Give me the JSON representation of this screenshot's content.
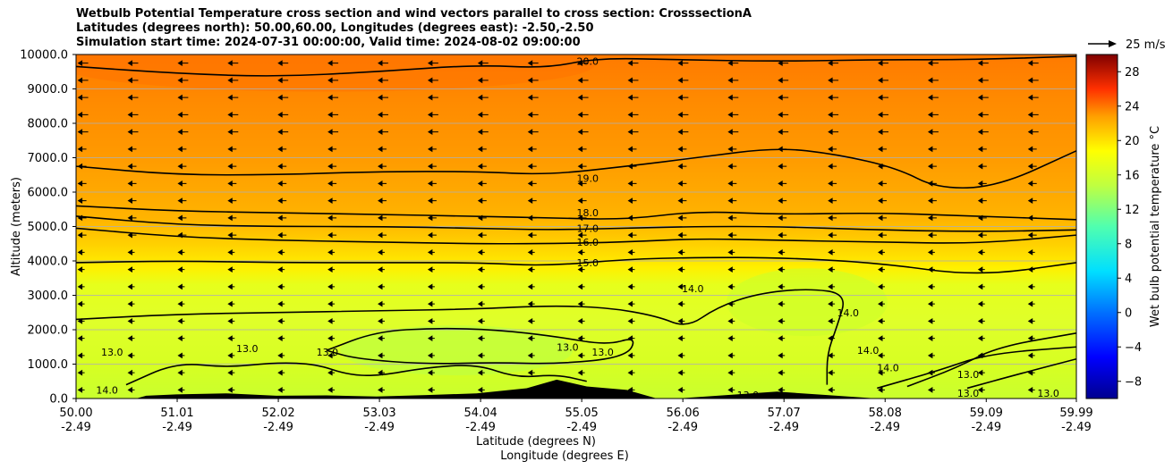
{
  "chart_data": {
    "type": "contour",
    "title": [
      "Wetbulb Potential Temperature cross section and wind vectors parallel to cross section: CrosssectionA",
      "Latitudes (degrees north): 50.00,60.00, Longitudes (degrees east): -2.50,-2.50",
      "Simulation start time: 2024-07-31 00:00:00, Valid time: 2024-08-02 09:00:00"
    ],
    "xlabel_lat": "Latitude (degrees N)",
    "xlabel_lon": "Longitude (degrees E)",
    "ylabel": "Altitude (meters)",
    "x_ticks_lat": [
      "50.00",
      "51.01",
      "52.02",
      "53.03",
      "54.04",
      "55.05",
      "56.06",
      "57.07",
      "58.08",
      "59.09",
      "59.99"
    ],
    "x_ticks_lon": [
      "-2.49",
      "-2.49",
      "-2.49",
      "-2.49",
      "-2.49",
      "-2.49",
      "-2.49",
      "-2.49",
      "-2.49",
      "-2.49",
      "-2.49"
    ],
    "xlim": [
      50.0,
      59.99
    ],
    "ylim": [
      0,
      10000
    ],
    "y_ticks": [
      "0.0",
      "1000.0",
      "2000.0",
      "3000.0",
      "4000.0",
      "5000.0",
      "6000.0",
      "7000.0",
      "8000.0",
      "9000.0",
      "10000.0"
    ],
    "grid": "horizontal",
    "contour_labels": [
      "20.0",
      "19.0",
      "18.0",
      "17.0",
      "16.0",
      "15.0",
      "14.0",
      "13.0"
    ],
    "contours": [
      {
        "level": 20.0,
        "points": [
          [
            50.0,
            9650
          ],
          [
            51.0,
            9450
          ],
          [
            52.0,
            9350
          ],
          [
            53.0,
            9500
          ],
          [
            54.0,
            9700
          ],
          [
            54.7,
            9600
          ],
          [
            55.2,
            9900
          ],
          [
            56.0,
            9850
          ],
          [
            57.0,
            9800
          ],
          [
            58.0,
            9850
          ],
          [
            59.0,
            9850
          ],
          [
            59.99,
            9950
          ]
        ]
      },
      {
        "level": 19.0,
        "points": [
          [
            50.0,
            6750
          ],
          [
            51.0,
            6500
          ],
          [
            52.0,
            6500
          ],
          [
            53.0,
            6600
          ],
          [
            54.0,
            6600
          ],
          [
            54.7,
            6500
          ],
          [
            55.5,
            6750
          ],
          [
            56.2,
            7000
          ],
          [
            57.0,
            7300
          ],
          [
            57.6,
            7100
          ],
          [
            58.2,
            6700
          ],
          [
            58.6,
            6100
          ],
          [
            59.2,
            6150
          ],
          [
            59.99,
            7200
          ]
        ]
      },
      {
        "level": 18.0,
        "points": [
          [
            50.0,
            5600
          ],
          [
            51.0,
            5450
          ],
          [
            52.0,
            5400
          ],
          [
            53.0,
            5350
          ],
          [
            54.0,
            5300
          ],
          [
            54.7,
            5250
          ],
          [
            55.5,
            5200
          ],
          [
            56.2,
            5450
          ],
          [
            57.0,
            5350
          ],
          [
            58.0,
            5400
          ],
          [
            59.0,
            5300
          ],
          [
            59.99,
            5200
          ]
        ]
      },
      {
        "level": 17.0,
        "points": [
          [
            50.0,
            5300
          ],
          [
            51.0,
            5050
          ],
          [
            52.0,
            5000
          ],
          [
            53.0,
            5000
          ],
          [
            54.0,
            4950
          ],
          [
            54.7,
            4900
          ],
          [
            55.5,
            4950
          ],
          [
            56.2,
            5000
          ],
          [
            57.0,
            5000
          ],
          [
            58.0,
            4900
          ],
          [
            59.0,
            4850
          ],
          [
            59.99,
            4900
          ]
        ]
      },
      {
        "level": 16.0,
        "points": [
          [
            50.0,
            4950
          ],
          [
            51.0,
            4700
          ],
          [
            52.0,
            4600
          ],
          [
            53.0,
            4550
          ],
          [
            54.0,
            4500
          ],
          [
            54.7,
            4500
          ],
          [
            55.5,
            4550
          ],
          [
            56.2,
            4650
          ],
          [
            57.0,
            4600
          ],
          [
            58.0,
            4550
          ],
          [
            59.0,
            4500
          ],
          [
            59.99,
            4750
          ]
        ]
      },
      {
        "level": 15.0,
        "points": [
          [
            50.0,
            3950
          ],
          [
            51.0,
            4000
          ],
          [
            52.0,
            3950
          ],
          [
            53.0,
            3950
          ],
          [
            54.0,
            3950
          ],
          [
            54.7,
            3850
          ],
          [
            55.5,
            4050
          ],
          [
            56.2,
            4100
          ],
          [
            57.0,
            4100
          ],
          [
            58.0,
            3950
          ],
          [
            59.0,
            3550
          ],
          [
            59.99,
            3950
          ]
        ]
      },
      {
        "level": 14.0,
        "points": [
          [
            50.0,
            2300
          ],
          [
            51.0,
            2450
          ],
          [
            52.0,
            2500
          ],
          [
            53.0,
            2550
          ],
          [
            54.0,
            2600
          ],
          [
            54.7,
            2700
          ],
          [
            55.3,
            2650
          ],
          [
            55.8,
            2400
          ],
          [
            56.1,
            2050
          ],
          [
            56.4,
            2650
          ],
          [
            56.8,
            3050
          ],
          [
            57.3,
            3200
          ],
          [
            57.7,
            3050
          ],
          [
            57.6,
            2100
          ],
          [
            57.5,
            1300
          ],
          [
            57.5,
            400
          ]
        ]
      },
      {
        "level": 13.0,
        "points": [
          [
            50.5,
            400
          ],
          [
            51.0,
            1050
          ],
          [
            51.5,
            900
          ],
          [
            52.0,
            1050
          ],
          [
            52.4,
            1000
          ],
          [
            52.7,
            700
          ],
          [
            53.0,
            650
          ],
          [
            53.5,
            900
          ],
          [
            54.0,
            1000
          ],
          [
            54.4,
            600
          ],
          [
            54.8,
            700
          ],
          [
            55.1,
            500
          ]
        ]
      },
      {
        "level": 13.0,
        "points": [
          [
            52.5,
            1400
          ],
          [
            53.0,
            1950
          ],
          [
            53.6,
            2050
          ],
          [
            54.2,
            2000
          ],
          [
            54.8,
            1800
          ],
          [
            55.3,
            1550
          ],
          [
            55.6,
            1800
          ],
          [
            55.5,
            1200
          ],
          [
            54.8,
            1000
          ],
          [
            54.2,
            1050
          ],
          [
            53.5,
            1000
          ],
          [
            52.8,
            1150
          ],
          [
            52.5,
            1400
          ]
        ]
      },
      {
        "level": 13.0,
        "points": [
          [
            58.3,
            350
          ],
          [
            58.8,
            900
          ],
          [
            59.2,
            1500
          ],
          [
            59.99,
            1900
          ]
        ]
      },
      {
        "level": 13.0,
        "points": [
          [
            58.9,
            300
          ],
          [
            59.4,
            700
          ],
          [
            59.99,
            1150
          ]
        ]
      },
      {
        "level": 14.0,
        "points": [
          [
            58.0,
            300
          ],
          [
            58.6,
            800
          ],
          [
            59.1,
            1300
          ],
          [
            59.99,
            1500
          ]
        ]
      }
    ],
    "contour_label_positions": [
      {
        "text": "20.0",
        "x": 55.0,
        "y": 9800
      },
      {
        "text": "19.0",
        "x": 55.0,
        "y": 6400
      },
      {
        "text": "18.0",
        "x": 55.0,
        "y": 5400
      },
      {
        "text": "17.0",
        "x": 55.0,
        "y": 4950
      },
      {
        "text": "16.0",
        "x": 55.0,
        "y": 4550
      },
      {
        "text": "15.0",
        "x": 55.0,
        "y": 3950
      },
      {
        "text": "14.0",
        "x": 56.05,
        "y": 3200
      },
      {
        "text": "14.0",
        "x": 57.6,
        "y": 2500
      },
      {
        "text": "13.0",
        "x": 50.25,
        "y": 1350
      },
      {
        "text": "13.0",
        "x": 51.6,
        "y": 1450
      },
      {
        "text": "13.0",
        "x": 52.4,
        "y": 1350
      },
      {
        "text": "13.0",
        "x": 54.8,
        "y": 1500
      },
      {
        "text": "13.0",
        "x": 55.15,
        "y": 1350
      },
      {
        "text": "14.0",
        "x": 57.8,
        "y": 1400
      },
      {
        "text": "14.0",
        "x": 58.0,
        "y": 900
      },
      {
        "text": "13.0",
        "x": 58.8,
        "y": 700
      },
      {
        "text": "13.0",
        "x": 58.8,
        "y": 150
      },
      {
        "text": "13.0",
        "x": 59.6,
        "y": 150
      },
      {
        "text": "14.0",
        "x": 50.2,
        "y": 250
      },
      {
        "text": "13.0",
        "x": 56.6,
        "y": 100
      }
    ],
    "terrain": [
      [
        50.0,
        0
      ],
      [
        50.6,
        0
      ],
      [
        50.7,
        80
      ],
      [
        51.0,
        120
      ],
      [
        51.5,
        150
      ],
      [
        52.0,
        80
      ],
      [
        52.5,
        90
      ],
      [
        53.0,
        60
      ],
      [
        53.5,
        100
      ],
      [
        54.0,
        150
      ],
      [
        54.5,
        300
      ],
      [
        54.8,
        550
      ],
      [
        55.1,
        350
      ],
      [
        55.5,
        250
      ],
      [
        55.8,
        0
      ],
      [
        56.0,
        0
      ],
      [
        56.5,
        100
      ],
      [
        57.0,
        200
      ],
      [
        57.5,
        100
      ],
      [
        58.0,
        0
      ],
      [
        59.99,
        0
      ]
    ],
    "vector_scale": {
      "label": "25 m/s",
      "speed": 25
    },
    "colorbar": {
      "label": "Wet bulb potential temperature °C",
      "min": -10,
      "max": 30,
      "ticks": [
        -8,
        -4,
        0,
        4,
        8,
        12,
        16,
        20,
        24,
        28
      ],
      "colormap": "jet"
    }
  }
}
